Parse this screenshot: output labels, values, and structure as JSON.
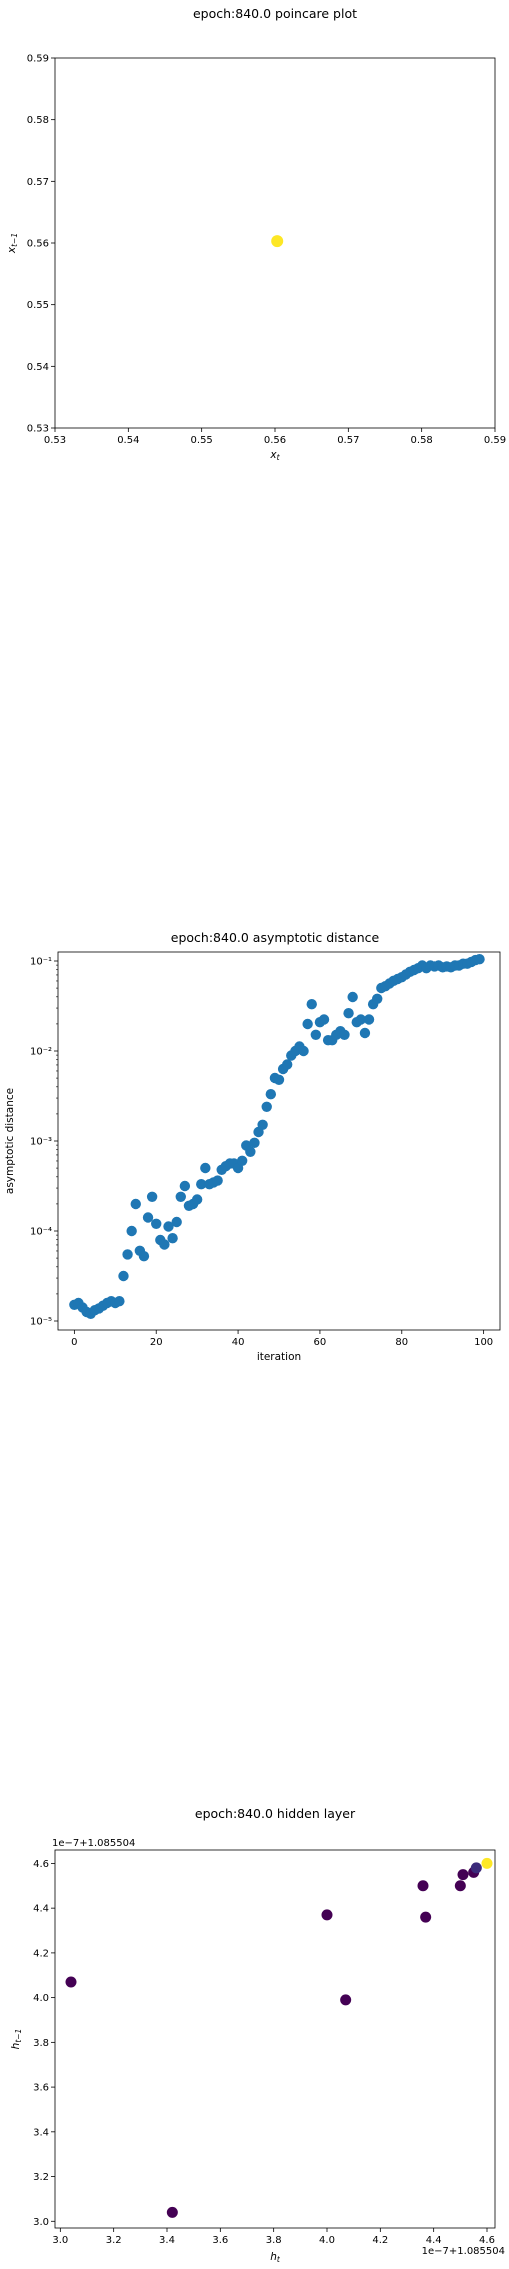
{
  "chart_data": [
    {
      "type": "scatter",
      "title": "epoch:840.0 poincare plot",
      "xlabel": "x_t",
      "ylabel": "x_{t-1}",
      "xlim": [
        0.53,
        0.59
      ],
      "ylim": [
        0.53,
        0.59
      ],
      "x_ticks": [
        "0.53",
        "0.54",
        "0.55",
        "0.56",
        "0.57",
        "0.58",
        "0.59"
      ],
      "y_ticks": [
        "0.53",
        "0.54",
        "0.55",
        "0.56",
        "0.57",
        "0.58",
        "0.59"
      ],
      "points": [
        {
          "x": 0.5603,
          "y": 0.5603
        }
      ],
      "color": "#fde725"
    },
    {
      "type": "scatter",
      "title": "epoch:840.0 asymptotic distance",
      "xlabel": "iteration",
      "ylabel": "asymptotic distance",
      "y_scale": "log",
      "xlim": [
        -4,
        104
      ],
      "ylim_log10": [
        -5.1,
        -0.9
      ],
      "x_ticks": [
        "0",
        "20",
        "40",
        "60",
        "80",
        "100"
      ],
      "y_ticks": [
        "10⁻⁵",
        "10⁻⁴",
        "10⁻³",
        "10⁻²",
        "10⁻¹"
      ],
      "color": "#1f77b4",
      "x": [
        0,
        1,
        2,
        3,
        4,
        5,
        6,
        7,
        8,
        9,
        10,
        11,
        12,
        13,
        14,
        15,
        16,
        17,
        18,
        19,
        20,
        21,
        22,
        23,
        24,
        25,
        26,
        27,
        28,
        29,
        30,
        31,
        32,
        33,
        34,
        35,
        36,
        37,
        38,
        39,
        40,
        41,
        42,
        43,
        44,
        45,
        46,
        47,
        48,
        49,
        50,
        51,
        52,
        53,
        54,
        55,
        56,
        57,
        58,
        59,
        60,
        61,
        62,
        63,
        64,
        65,
        66,
        67,
        68,
        69,
        70,
        71,
        72,
        73,
        74,
        75,
        76,
        77,
        78,
        79,
        80,
        81,
        82,
        83,
        84,
        85,
        86,
        87,
        88,
        89,
        90,
        91,
        92,
        93,
        94,
        95,
        96,
        97,
        98,
        99
      ],
      "log10_y": [
        -4.82,
        -4.8,
        -4.85,
        -4.9,
        -4.92,
        -4.88,
        -4.86,
        -4.83,
        -4.8,
        -4.78,
        -4.8,
        -4.78,
        -4.5,
        -4.26,
        -4.0,
        -3.7,
        -4.22,
        -4.28,
        -3.85,
        -3.62,
        -3.92,
        -4.1,
        -4.15,
        -3.95,
        -4.08,
        -3.9,
        -3.62,
        -3.5,
        -3.72,
        -3.7,
        -3.65,
        -3.48,
        -3.3,
        -3.48,
        -3.46,
        -3.44,
        -3.32,
        -3.28,
        -3.25,
        -3.25,
        -3.3,
        -3.22,
        -3.05,
        -3.12,
        -3.02,
        -2.9,
        -2.82,
        -2.62,
        -2.48,
        -2.3,
        -2.32,
        -2.2,
        -2.15,
        -2.05,
        -2.0,
        -1.95,
        -2.0,
        -1.7,
        -1.48,
        -1.82,
        -1.68,
        -1.65,
        -1.88,
        -1.88,
        -1.82,
        -1.78,
        -1.82,
        -1.58,
        -1.4,
        -1.68,
        -1.65,
        -1.8,
        -1.65,
        -1.48,
        -1.42,
        -1.3,
        -1.28,
        -1.25,
        -1.22,
        -1.2,
        -1.18,
        -1.15,
        -1.12,
        -1.1,
        -1.08,
        -1.05,
        -1.08,
        -1.05,
        -1.06,
        -1.05,
        -1.07,
        -1.06,
        -1.07,
        -1.05,
        -1.05,
        -1.03,
        -1.03,
        -1.01,
        -0.99,
        -0.98
      ]
    },
    {
      "type": "scatter",
      "title": "epoch:840.0 hidden layer",
      "xlabel": "h_t",
      "ylabel": "h_{t-1}",
      "x_offset_label": "1e−7+1.085504",
      "y_offset_label": "1e−7+1.085504",
      "xlim": [
        2.98,
        4.63
      ],
      "ylim": [
        2.97,
        4.66
      ],
      "x_ticks": [
        "3.0",
        "3.2",
        "3.4",
        "3.6",
        "3.8",
        "4.0",
        "4.2",
        "4.4",
        "4.6"
      ],
      "y_ticks": [
        "3.0",
        "3.2",
        "3.4",
        "3.6",
        "3.8",
        "4.0",
        "4.2",
        "4.4",
        "4.6"
      ],
      "points": [
        {
          "x": 3.04,
          "y": 4.07,
          "color": "#440154"
        },
        {
          "x": 3.42,
          "y": 3.04,
          "color": "#440154"
        },
        {
          "x": 4.0,
          "y": 4.37,
          "color": "#440154"
        },
        {
          "x": 4.07,
          "y": 3.99,
          "color": "#440154"
        },
        {
          "x": 4.36,
          "y": 4.5,
          "color": "#440154"
        },
        {
          "x": 4.37,
          "y": 4.36,
          "color": "#440154"
        },
        {
          "x": 4.5,
          "y": 4.5,
          "color": "#440154"
        },
        {
          "x": 4.51,
          "y": 4.55,
          "color": "#440154"
        },
        {
          "x": 4.55,
          "y": 4.56,
          "color": "#440154"
        },
        {
          "x": 4.56,
          "y": 4.58,
          "color": "#3b2a7a"
        },
        {
          "x": 4.6,
          "y": 4.6,
          "color": "#fde725"
        }
      ]
    }
  ]
}
